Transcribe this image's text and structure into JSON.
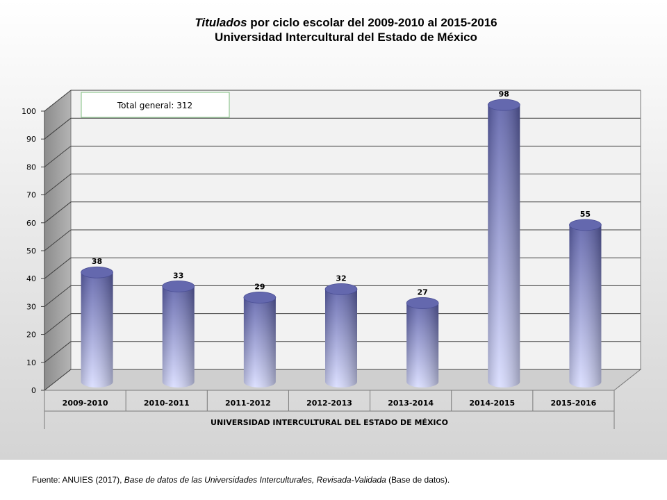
{
  "title": {
    "italic": "Titulados",
    "line1_rest": " por ciclo escolar del 2009-2010 al 2015-2016",
    "line2": "Universidad Intercultural del Estado de México"
  },
  "total_box": "Total general: 312",
  "source": {
    "prefix": "Fuente: ANUIES (2017),  ",
    "italic": "Base de datos de las Universidades  Interculturales, Revisada-Validada",
    "suffix": "  (Base de datos)."
  },
  "colors": {
    "bar_top": "#5a5ea8",
    "bar_bottom": "#d8dcff",
    "grid": "#404040"
  },
  "chart_data": {
    "type": "bar",
    "title": "Titulados por ciclo escolar del 2009-2010 al 2015-2016 Universidad Intercultural del Estado de México",
    "group_label": "UNIVERSIDAD INTERCULTURAL DEL ESTADO DE MÉXICO",
    "categories": [
      "2009-2010",
      "2010-2011",
      "2011-2012",
      "2012-2013",
      "2013-2014",
      "2014-2015",
      "2015-2016"
    ],
    "values": [
      38,
      33,
      29,
      32,
      27,
      98,
      55
    ],
    "ylim": [
      0,
      100
    ],
    "yticks": [
      0,
      10,
      20,
      30,
      40,
      50,
      60,
      70,
      80,
      90,
      100
    ],
    "grid": true,
    "legend": "none"
  }
}
